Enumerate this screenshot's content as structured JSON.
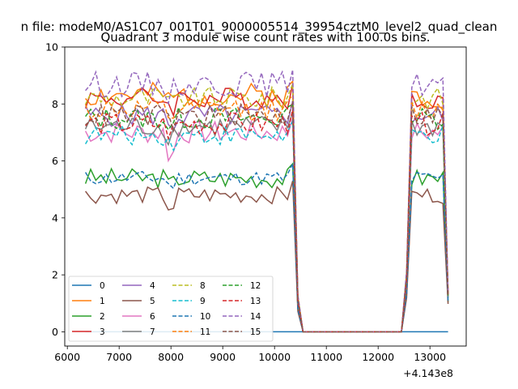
{
  "chart_data": {
    "type": "line",
    "suptitle": "n file: modeM0/AS1C07_001T01_9000005514_39954cztM0_level2_quad_clean",
    "title": "Quadrant 3 module wise count rates with 100.0s bins.",
    "xlabel": "",
    "ylabel": "",
    "x_offset_label": "+4.143e8",
    "xlim": [
      5950,
      13700
    ],
    "ylim": [
      -0.5,
      10.0
    ],
    "xticks": [
      6000,
      7000,
      8000,
      9000,
      10000,
      11000,
      12000,
      13000
    ],
    "yticks": [
      0,
      2,
      4,
      6,
      8,
      10
    ],
    "x_range": [
      6350,
      13350
    ],
    "x_step": 100,
    "gaps": [
      [
        10550,
        12450
      ]
    ],
    "legend": {
      "position": "lower-left",
      "columns": 4
    },
    "series": [
      {
        "name": "0",
        "color": "#1f77b4",
        "style": "solid",
        "level": 0.0,
        "dip": 0.0,
        "amp": 0.0,
        "seed": 1
      },
      {
        "name": "1",
        "color": "#ff7f0e",
        "style": "solid",
        "level": 8.3,
        "dip": 0.3,
        "amp": 0.45,
        "seed": 2
      },
      {
        "name": "2",
        "color": "#2ca02c",
        "style": "solid",
        "level": 5.4,
        "dip": 0.25,
        "amp": 0.35,
        "seed": 3
      },
      {
        "name": "3",
        "color": "#d62728",
        "style": "solid",
        "level": 8.2,
        "dip": 0.3,
        "amp": 0.4,
        "seed": 4
      },
      {
        "name": "4",
        "color": "#9467bd",
        "style": "solid",
        "level": 7.6,
        "dip": 0.35,
        "amp": 0.4,
        "seed": 5
      },
      {
        "name": "5",
        "color": "#8c564b",
        "style": "solid",
        "level": 4.8,
        "dip": 0.5,
        "amp": 0.3,
        "seed": 6
      },
      {
        "name": "6",
        "color": "#e377c2",
        "style": "solid",
        "level": 7.0,
        "dip": 0.9,
        "amp": 0.4,
        "seed": 7
      },
      {
        "name": "7",
        "color": "#7f7f7f",
        "style": "solid",
        "level": 7.2,
        "dip": 0.3,
        "amp": 0.4,
        "seed": 8
      },
      {
        "name": "8",
        "color": "#bcbd22",
        "style": "dashed",
        "level": 8.2,
        "dip": 0.3,
        "amp": 0.4,
        "seed": 9
      },
      {
        "name": "9",
        "color": "#17becf",
        "style": "dashed",
        "level": 6.9,
        "dip": 0.3,
        "amp": 0.35,
        "seed": 10
      },
      {
        "name": "10",
        "color": "#1f77b4",
        "style": "dashed",
        "level": 5.4,
        "dip": 0.3,
        "amp": 0.25,
        "seed": 11
      },
      {
        "name": "11",
        "color": "#ff7f0e",
        "style": "dashed",
        "level": 7.8,
        "dip": 0.3,
        "amp": 0.4,
        "seed": 12
      },
      {
        "name": "12",
        "color": "#2ca02c",
        "style": "dashed",
        "level": 7.5,
        "dip": 0.3,
        "amp": 0.4,
        "seed": 13
      },
      {
        "name": "13",
        "color": "#d62728",
        "style": "dashed",
        "level": 7.3,
        "dip": 0.3,
        "amp": 0.4,
        "seed": 14
      },
      {
        "name": "14",
        "color": "#9467bd",
        "style": "dashed",
        "level": 8.7,
        "dip": 0.3,
        "amp": 0.45,
        "seed": 15
      },
      {
        "name": "15",
        "color": "#8c564b",
        "style": "dashed",
        "level": 7.6,
        "dip": 0.3,
        "amp": 0.4,
        "seed": 16
      }
    ]
  }
}
